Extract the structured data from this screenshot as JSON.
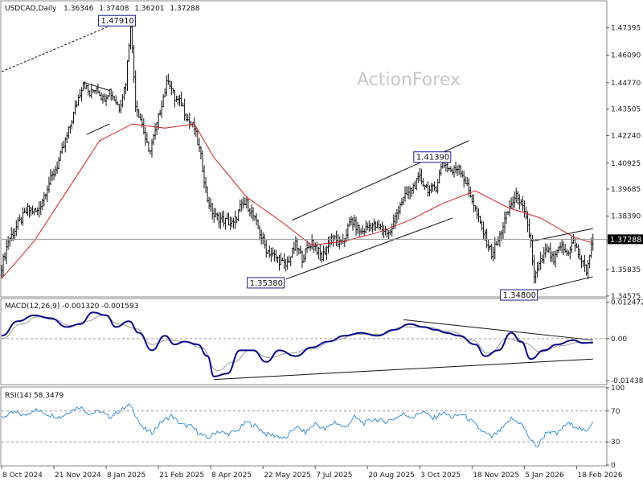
{
  "chart_data": [
    {
      "type": "candlestick",
      "symbol_label": "USDCAD,Daily",
      "ohlc": [
        "1.36346",
        "1.37408",
        "1.36201",
        "1.37288"
      ],
      "watermark": "ActionForex",
      "current_price": 1.37288,
      "current_price_label": "1.37288",
      "ylim": [
        1.3457,
        1.4865
      ],
      "yticks": [
        1.34575,
        1.35835,
        1.3726,
        1.3839,
        1.39685,
        1.40925,
        1.4224,
        1.43505,
        1.4477,
        1.4609,
        1.47395
      ],
      "ytick_labels": [
        "1.34575",
        "1.35835",
        "1.37260",
        "1.38390",
        "1.39685",
        "1.40925",
        "1.42240",
        "1.43505",
        "1.44770",
        "1.46090",
        "1.47395"
      ],
      "xlim": [
        0,
        370
      ],
      "xticks": [
        0,
        32,
        64,
        96,
        128,
        160,
        192,
        224,
        256,
        288,
        320,
        352
      ],
      "xtick_labels": [
        "8 Oct 2024",
        "21 Nov 2024",
        "8 Jan 2025",
        "21 Feb 2025",
        "8 Apr 2025",
        "22 May 2025",
        "7 Jul 2025",
        "20 Aug 2025",
        "3 Oct 2025",
        "18 Nov 2025",
        "5 Jan 2026",
        "18 Feb 2026"
      ],
      "price_path": [
        [
          0,
          1.36
        ],
        [
          4,
          1.372
        ],
        [
          10,
          1.38
        ],
        [
          16,
          1.387
        ],
        [
          22,
          1.386
        ],
        [
          28,
          1.398
        ],
        [
          34,
          1.408
        ],
        [
          40,
          1.422
        ],
        [
          46,
          1.438
        ],
        [
          50,
          1.448
        ],
        [
          54,
          1.442
        ],
        [
          58,
          1.446
        ],
        [
          62,
          1.44
        ],
        [
          66,
          1.444
        ],
        [
          72,
          1.436
        ],
        [
          76,
          1.448
        ],
        [
          79,
          1.476
        ],
        [
          82,
          1.438
        ],
        [
          86,
          1.428
        ],
        [
          90,
          1.414
        ],
        [
          94,
          1.424
        ],
        [
          98,
          1.438
        ],
        [
          102,
          1.45
        ],
        [
          106,
          1.44
        ],
        [
          110,
          1.438
        ],
        [
          114,
          1.43
        ],
        [
          118,
          1.426
        ],
        [
          122,
          1.412
        ],
        [
          126,
          1.392
        ],
        [
          130,
          1.384
        ],
        [
          136,
          1.382
        ],
        [
          142,
          1.38
        ],
        [
          146,
          1.388
        ],
        [
          150,
          1.39
        ],
        [
          154,
          1.384
        ],
        [
          158,
          1.376
        ],
        [
          162,
          1.368
        ],
        [
          168,
          1.364
        ],
        [
          174,
          1.36
        ],
        [
          180,
          1.37
        ],
        [
          184,
          1.364
        ],
        [
          190,
          1.372
        ],
        [
          196,
          1.364
        ],
        [
          202,
          1.374
        ],
        [
          208,
          1.37
        ],
        [
          214,
          1.382
        ],
        [
          220,
          1.376
        ],
        [
          226,
          1.38
        ],
        [
          232,
          1.378
        ],
        [
          238,
          1.376
        ],
        [
          244,
          1.39
        ],
        [
          250,
          1.396
        ],
        [
          256,
          1.402
        ],
        [
          262,
          1.396
        ],
        [
          266,
          1.398
        ],
        [
          270,
          1.41
        ],
        [
          276,
          1.405
        ],
        [
          280,
          1.408
        ],
        [
          284,
          1.4
        ],
        [
          288,
          1.392
        ],
        [
          292,
          1.382
        ],
        [
          296,
          1.374
        ],
        [
          300,
          1.366
        ],
        [
          304,
          1.372
        ],
        [
          308,
          1.382
        ],
        [
          312,
          1.39
        ],
        [
          316,
          1.394
        ],
        [
          320,
          1.385
        ],
        [
          324,
          1.372
        ],
        [
          326,
          1.354
        ],
        [
          330,
          1.362
        ],
        [
          334,
          1.368
        ],
        [
          338,
          1.362
        ],
        [
          342,
          1.37
        ],
        [
          346,
          1.366
        ],
        [
          350,
          1.372
        ],
        [
          354,
          1.364
        ],
        [
          358,
          1.358
        ],
        [
          362,
          1.3729
        ]
      ],
      "ema": [
        [
          0,
          1.354
        ],
        [
          20,
          1.372
        ],
        [
          40,
          1.396
        ],
        [
          60,
          1.42
        ],
        [
          80,
          1.428
        ],
        [
          100,
          1.426
        ],
        [
          118,
          1.428
        ],
        [
          130,
          1.412
        ],
        [
          150,
          1.393
        ],
        [
          170,
          1.382
        ],
        [
          190,
          1.37
        ],
        [
          210,
          1.372
        ],
        [
          230,
          1.376
        ],
        [
          250,
          1.382
        ],
        [
          270,
          1.39
        ],
        [
          290,
          1.396
        ],
        [
          310,
          1.388
        ],
        [
          330,
          1.383
        ],
        [
          350,
          1.374
        ],
        [
          362,
          1.371
        ]
      ],
      "ema_color": "#d42020",
      "annotations": [
        {
          "label": "1.47910",
          "x": 79,
          "y": 1.4791
        },
        {
          "label": "1.35380",
          "x": 174,
          "y": 1.3538
        },
        {
          "label": "1.41390",
          "x": 272,
          "y": 1.4139
        },
        {
          "label": "1.34800",
          "x": 327,
          "y": 1.348
        }
      ],
      "trendlines": [
        {
          "style": "dashed",
          "points": [
            [
              0,
              1.453
            ],
            [
              79,
              1.4791
            ]
          ]
        },
        {
          "style": "solid",
          "points": [
            [
              50,
              1.448
            ],
            [
              66,
              1.444
            ]
          ]
        },
        {
          "style": "solid",
          "points": [
            [
              52,
              1.423
            ],
            [
              66,
              1.428
            ]
          ]
        },
        {
          "style": "solid",
          "points": [
            [
              178,
              1.382
            ],
            [
              286,
              1.42
            ]
          ]
        },
        {
          "style": "solid",
          "points": [
            [
              174,
              1.3538
            ],
            [
              276,
              1.383
            ]
          ]
        },
        {
          "style": "solid",
          "points": [
            [
              325,
              1.372
            ],
            [
              362,
              1.378
            ]
          ]
        },
        {
          "style": "solid",
          "points": [
            [
              325,
              1.348
            ],
            [
              362,
              1.355
            ]
          ]
        }
      ]
    },
    {
      "type": "line",
      "label": "MACD(12,26,9) -0.001320 -0.001593",
      "ylim": [
        -0.0155,
        0.0135
      ],
      "yticks": [
        0.012472,
        0.0,
        -0.014389
      ],
      "ytick_labels": [
        "0.012472",
        "0.00",
        "-0.014389"
      ],
      "macd_color": "#0a0a8a",
      "signal_color": "#9a9a9a",
      "macd": [
        [
          0,
          0.001
        ],
        [
          10,
          0.006
        ],
        [
          20,
          0.008
        ],
        [
          30,
          0.007
        ],
        [
          40,
          0.004
        ],
        [
          48,
          0.005
        ],
        [
          56,
          0.009
        ],
        [
          64,
          0.008
        ],
        [
          70,
          0.004
        ],
        [
          78,
          0.006
        ],
        [
          84,
          0.002
        ],
        [
          92,
          -0.004
        ],
        [
          100,
          0.001
        ],
        [
          106,
          -0.002
        ],
        [
          112,
          -0.001
        ],
        [
          120,
          -0.002
        ],
        [
          126,
          -0.006
        ],
        [
          130,
          -0.013
        ],
        [
          138,
          -0.012
        ],
        [
          146,
          -0.004
        ],
        [
          154,
          -0.004
        ],
        [
          162,
          -0.008
        ],
        [
          170,
          -0.004
        ],
        [
          180,
          -0.006
        ],
        [
          190,
          -0.003
        ],
        [
          200,
          -0.001
        ],
        [
          210,
          0.001
        ],
        [
          220,
          0.002
        ],
        [
          230,
          0.001
        ],
        [
          240,
          0.003
        ],
        [
          250,
          0.005
        ],
        [
          258,
          0.004
        ],
        [
          266,
          0.003
        ],
        [
          272,
          0.002
        ],
        [
          280,
          0.001
        ],
        [
          290,
          -0.002
        ],
        [
          296,
          -0.006
        ],
        [
          304,
          -0.004
        ],
        [
          312,
          0.002
        ],
        [
          318,
          -0.001
        ],
        [
          324,
          -0.007
        ],
        [
          332,
          -0.004
        ],
        [
          340,
          -0.002
        ],
        [
          350,
          -0.0005
        ],
        [
          356,
          -0.0015
        ],
        [
          362,
          -0.0013
        ]
      ],
      "signal": [
        [
          0,
          0.0
        ],
        [
          12,
          0.005
        ],
        [
          22,
          0.0075
        ],
        [
          32,
          0.0065
        ],
        [
          42,
          0.0045
        ],
        [
          52,
          0.006
        ],
        [
          62,
          0.008
        ],
        [
          72,
          0.005
        ],
        [
          82,
          0.0035
        ],
        [
          92,
          -0.002
        ],
        [
          102,
          -0.0005
        ],
        [
          112,
          -0.001
        ],
        [
          122,
          -0.003
        ],
        [
          132,
          -0.011
        ],
        [
          142,
          -0.008
        ],
        [
          152,
          -0.004
        ],
        [
          164,
          -0.0065
        ],
        [
          176,
          -0.005
        ],
        [
          190,
          -0.0035
        ],
        [
          204,
          -0.0005
        ],
        [
          218,
          0.0015
        ],
        [
          232,
          0.0015
        ],
        [
          246,
          0.004
        ],
        [
          260,
          0.004
        ],
        [
          274,
          0.0025
        ],
        [
          288,
          -0.0005
        ],
        [
          298,
          -0.005
        ],
        [
          310,
          0.0
        ],
        [
          320,
          -0.0015
        ],
        [
          330,
          -0.0045
        ],
        [
          342,
          -0.0025
        ],
        [
          354,
          -0.0012
        ],
        [
          362,
          -0.0016
        ]
      ],
      "trendlines": [
        {
          "style": "solid",
          "points": [
            [
              246,
              0.0065
            ],
            [
              362,
              -0.0005
            ]
          ]
        },
        {
          "style": "solid",
          "points": [
            [
              130,
              -0.014
            ],
            [
              362,
              -0.007
            ]
          ]
        }
      ]
    },
    {
      "type": "line",
      "label": "RSI(14) 58.3479",
      "ylim": [
        0,
        100
      ],
      "yticks": [
        100,
        70,
        30,
        0
      ],
      "ytick_labels": [
        "100",
        "70",
        "30",
        "0"
      ],
      "rsi_color": "#3a8fd6",
      "rsi": [
        [
          0,
          62
        ],
        [
          8,
          68
        ],
        [
          14,
          64
        ],
        [
          20,
          72
        ],
        [
          28,
          66
        ],
        [
          36,
          62
        ],
        [
          42,
          70
        ],
        [
          48,
          76
        ],
        [
          54,
          66
        ],
        [
          60,
          70
        ],
        [
          66,
          62
        ],
        [
          72,
          70
        ],
        [
          79,
          78
        ],
        [
          86,
          48
        ],
        [
          92,
          42
        ],
        [
          98,
          56
        ],
        [
          104,
          64
        ],
        [
          110,
          52
        ],
        [
          116,
          50
        ],
        [
          122,
          40
        ],
        [
          126,
          34
        ],
        [
          132,
          44
        ],
        [
          138,
          40
        ],
        [
          144,
          44
        ],
        [
          150,
          56
        ],
        [
          156,
          50
        ],
        [
          162,
          40
        ],
        [
          168,
          38
        ],
        [
          174,
          34
        ],
        [
          180,
          50
        ],
        [
          186,
          42
        ],
        [
          192,
          54
        ],
        [
          198,
          46
        ],
        [
          204,
          56
        ],
        [
          210,
          48
        ],
        [
          216,
          62
        ],
        [
          222,
          54
        ],
        [
          228,
          60
        ],
        [
          234,
          56
        ],
        [
          240,
          60
        ],
        [
          246,
          66
        ],
        [
          252,
          62
        ],
        [
          258,
          70
        ],
        [
          264,
          60
        ],
        [
          270,
          68
        ],
        [
          276,
          62
        ],
        [
          282,
          66
        ],
        [
          288,
          56
        ],
        [
          294,
          44
        ],
        [
          300,
          36
        ],
        [
          306,
          46
        ],
        [
          312,
          60
        ],
        [
          318,
          54
        ],
        [
          324,
          32
        ],
        [
          328,
          24
        ],
        [
          334,
          44
        ],
        [
          340,
          40
        ],
        [
          346,
          54
        ],
        [
          352,
          50
        ],
        [
          358,
          42
        ],
        [
          362,
          58
        ]
      ]
    }
  ]
}
